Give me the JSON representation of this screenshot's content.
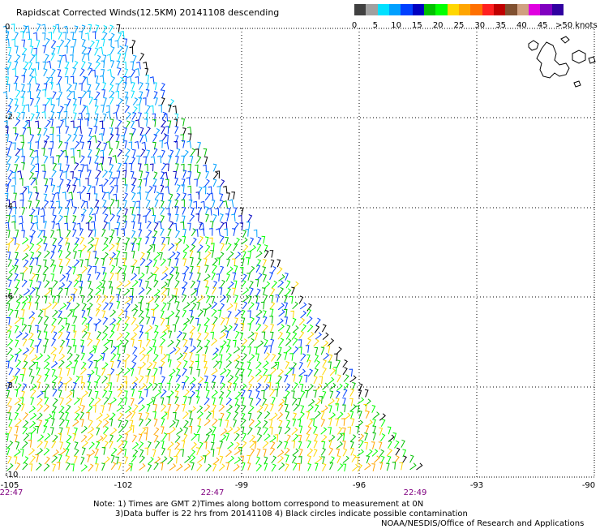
{
  "title": "Rapidscat Corrected Winds(12.5KM) 20141108 descending",
  "colorbar": {
    "colors": [
      "#404040",
      "#a0a0a0",
      "#00e0ff",
      "#00a0ff",
      "#0040ff",
      "#0000c0",
      "#00c000",
      "#00ff00",
      "#ffd700",
      "#ffa500",
      "#ff7000",
      "#ff2020",
      "#c00000",
      "#805030",
      "#d0a080",
      "#e000e0",
      "#8000c0",
      "#3000a0"
    ],
    "ticks": [
      "0",
      "5",
      "10",
      "15",
      "20",
      "25",
      "30",
      "35",
      "40",
      "45",
      ">50 knots"
    ]
  },
  "axes": {
    "lat_labels": [
      "0",
      "-2",
      "-4",
      "-6",
      "-8",
      "-10"
    ],
    "lon_labels": [
      "-105",
      "-102",
      "-99",
      "-96",
      "-93",
      "-90"
    ],
    "time_labels": [
      "22:47",
      "22:47",
      "22:49"
    ],
    "grid": "dotted"
  },
  "notes": {
    "line1": "Note: 1) Times are GMT 2)Times along bottom correspond to measurement at 0N",
    "line2": "3)Data buffer is 22 hrs from 20141108 4) Black circles indicate possible contamination",
    "line3": "NOAA/NESDIS/Office of Research and Applications"
  }
}
